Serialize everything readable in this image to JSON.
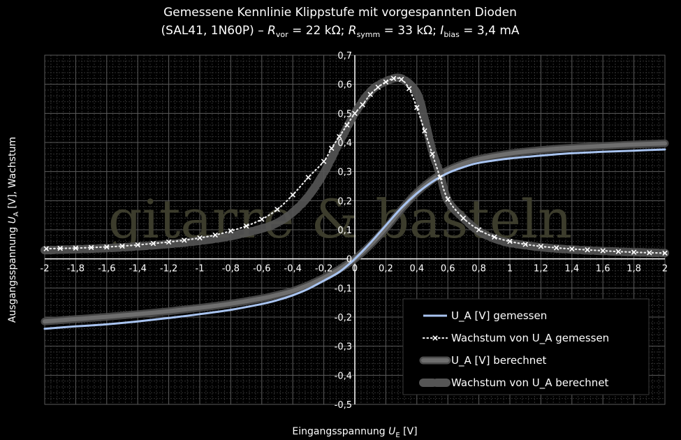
{
  "chart_data": {
    "type": "line",
    "title": "Gemessene Kennlinie Klippstufe mit vorgespannten Dioden",
    "subtitle": {
      "prefix": "(SAL41, 1N60P) – ",
      "R": "R",
      "vor_sub": "vor",
      "vor_val": " = 22 kΩ; ",
      "symm_sub": "symm",
      "symm_val": " = 33 kΩ; ",
      "I": "I",
      "bias_sub": "bias",
      "bias_val": " = 3,4 mA"
    },
    "xlabel": {
      "main": "Eingangsspannung ",
      "var": "U",
      "sub": "E",
      "unit": " [V]"
    },
    "ylabel": {
      "main": "Ausgangsspannung ",
      "var": "U",
      "sub": "A",
      "unit": " [V], Wachstum"
    },
    "xlim": [
      -2,
      2
    ],
    "ylim": [
      -0.5,
      0.7
    ],
    "x_ticks": [
      -2,
      -1.8,
      -1.6,
      -1.4,
      -1.2,
      -1,
      -0.8,
      -0.6,
      -0.4,
      -0.2,
      0,
      0.2,
      0.4,
      0.6,
      0.8,
      1,
      1.2,
      1.4,
      1.6,
      1.8,
      2
    ],
    "x_tick_labels": [
      "-2",
      "-1,8",
      "-1,6",
      "-1,4",
      "-1,2",
      "-1",
      "-0,8",
      "-0,6",
      "-0,4",
      "-0,2",
      "0",
      "0,2",
      "0,4",
      "0,6",
      "0,8",
      "1",
      "1,2",
      "1,4",
      "1,6",
      "1,8",
      "2"
    ],
    "y_ticks": [
      0.7,
      0.6,
      0.5,
      0.4,
      0.3,
      0.2,
      0.1,
      0,
      -0.1,
      -0.2,
      -0.3,
      -0.4,
      -0.5
    ],
    "y_tick_labels": [
      "0,7",
      "0,6",
      "0,5",
      "0,4",
      "0,3",
      "0,2",
      "0,1",
      "0",
      "-0,1",
      "-0,2",
      "-0,3",
      "-0,4",
      "-0,5"
    ],
    "grid": true,
    "legend_position": "bottom-right",
    "series": [
      {
        "name": "U_A [V] gemessen",
        "style": "solid",
        "color": "#a9c4f0",
        "x": [
          -2,
          -1.8,
          -1.6,
          -1.4,
          -1.2,
          -1,
          -0.8,
          -0.6,
          -0.5,
          -0.4,
          -0.3,
          -0.2,
          -0.1,
          0,
          0.1,
          0.2,
          0.3,
          0.4,
          0.5,
          0.6,
          0.7,
          0.8,
          1,
          1.2,
          1.4,
          1.6,
          1.8,
          2
        ],
        "y": [
          -0.24,
          -0.232,
          -0.225,
          -0.215,
          -0.203,
          -0.19,
          -0.175,
          -0.155,
          -0.142,
          -0.125,
          -0.103,
          -0.075,
          -0.045,
          0,
          0.055,
          0.115,
          0.175,
          0.225,
          0.265,
          0.295,
          0.315,
          0.33,
          0.345,
          0.355,
          0.363,
          0.368,
          0.372,
          0.376
        ]
      },
      {
        "name": "Wachstum von U_A gemessen",
        "style": "dotted-x",
        "color": "#e8e8e8",
        "x": [
          -1.99,
          -1.9,
          -1.8,
          -1.7,
          -1.6,
          -1.5,
          -1.4,
          -1.3,
          -1.2,
          -1.1,
          -1,
          -0.9,
          -0.8,
          -0.7,
          -0.6,
          -0.5,
          -0.4,
          -0.3,
          -0.2,
          -0.15,
          -0.1,
          -0.05,
          0,
          0.05,
          0.1,
          0.15,
          0.2,
          0.25,
          0.3,
          0.35,
          0.4,
          0.45,
          0.5,
          0.55,
          0.6,
          0.7,
          0.8,
          0.9,
          1,
          1.1,
          1.2,
          1.3,
          1.4,
          1.5,
          1.6,
          1.7,
          1.8,
          1.9,
          2
        ],
        "y": [
          0.035,
          0.036,
          0.037,
          0.039,
          0.041,
          0.044,
          0.048,
          0.053,
          0.058,
          0.064,
          0.072,
          0.082,
          0.096,
          0.113,
          0.136,
          0.17,
          0.22,
          0.28,
          0.335,
          0.38,
          0.42,
          0.46,
          0.5,
          0.53,
          0.565,
          0.59,
          0.608,
          0.62,
          0.617,
          0.585,
          0.52,
          0.44,
          0.36,
          0.28,
          0.205,
          0.14,
          0.1,
          0.075,
          0.06,
          0.05,
          0.043,
          0.038,
          0.034,
          0.031,
          0.028,
          0.025,
          0.023,
          0.021,
          0.02
        ]
      },
      {
        "name": "U_A [V] berechnet",
        "style": "band",
        "color": "#6a6a6a",
        "x": [
          -2,
          -1.8,
          -1.6,
          -1.4,
          -1.2,
          -1,
          -0.8,
          -0.6,
          -0.5,
          -0.4,
          -0.3,
          -0.2,
          -0.1,
          0,
          0.1,
          0.2,
          0.3,
          0.4,
          0.5,
          0.6,
          0.7,
          0.8,
          1,
          1.2,
          1.4,
          1.6,
          1.8,
          2
        ],
        "y": [
          -0.215,
          -0.207,
          -0.199,
          -0.19,
          -0.18,
          -0.168,
          -0.154,
          -0.136,
          -0.124,
          -0.11,
          -0.09,
          -0.065,
          -0.035,
          0,
          0.048,
          0.105,
          0.17,
          0.228,
          0.272,
          0.305,
          0.327,
          0.343,
          0.362,
          0.374,
          0.382,
          0.388,
          0.393,
          0.397
        ]
      },
      {
        "name": "Wachstum von U_A berechnet",
        "style": "band",
        "color": "#6a6a6a",
        "x": [
          -2,
          -1.8,
          -1.6,
          -1.4,
          -1.2,
          -1,
          -0.8,
          -0.6,
          -0.5,
          -0.4,
          -0.3,
          -0.2,
          -0.1,
          0,
          0.1,
          0.2,
          0.3,
          0.4,
          0.45,
          0.5,
          0.55,
          0.6,
          0.7,
          0.8,
          0.9,
          1,
          1.2,
          1.4,
          1.6,
          1.8,
          2
        ],
        "y": [
          0.03,
          0.033,
          0.037,
          0.043,
          0.051,
          0.062,
          0.078,
          0.104,
          0.124,
          0.16,
          0.215,
          0.295,
          0.4,
          0.5,
          0.575,
          0.61,
          0.62,
          0.57,
          0.48,
          0.37,
          0.29,
          0.2,
          0.14,
          0.095,
          0.07,
          0.055,
          0.04,
          0.032,
          0.027,
          0.023,
          0.02
        ]
      }
    ],
    "watermark": "gitarre & basteln"
  }
}
